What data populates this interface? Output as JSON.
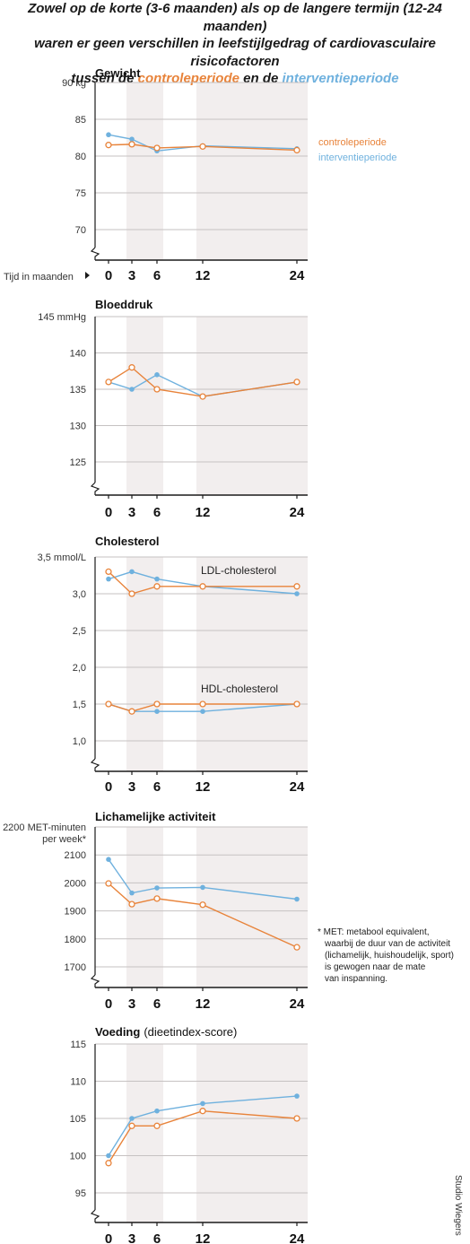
{
  "headline": {
    "line1": "Zowel op de korte (3-6 maanden) als op de langere termijn (12-24 maanden)",
    "line2": "waren er geen verschillen in leefstijlgedrag of cardiovasculaire risicofactoren",
    "line3_prefix": "tussen de",
    "control_label": "controleperiode",
    "connector": "en de",
    "intervention_label": "interventieperiode"
  },
  "colors": {
    "control": "#e8833a",
    "intervention": "#6fb1de",
    "shade": "#f2eeee",
    "grid": "#c6c2c2"
  },
  "x_axis_label": "Tijd in maanden",
  "credit": "Studio Wiegers",
  "chart_data": [
    {
      "type": "line",
      "title": "Gewicht",
      "x": [
        0,
        3,
        6,
        12,
        24
      ],
      "ylim": [
        65,
        90
      ],
      "yticks": [
        90,
        85,
        80,
        75,
        70
      ],
      "ytick_labels": [
        "90 kg",
        "85",
        "80",
        "75",
        "70"
      ],
      "legend": {
        "placement": "right",
        "entries": [
          "controleperiode",
          "interventieperiode"
        ]
      },
      "series": [
        {
          "name": "controleperiode",
          "key": "control",
          "values": [
            81.5,
            81.6,
            81.1,
            81.3,
            80.8
          ]
        },
        {
          "name": "interventieperiode",
          "key": "intervention",
          "values": [
            82.9,
            82.3,
            80.7,
            81.4,
            81.0
          ]
        }
      ]
    },
    {
      "type": "line",
      "title": "Bloeddruk",
      "x": [
        0,
        3,
        6,
        12,
        24
      ],
      "ylim": [
        120,
        145
      ],
      "yticks": [
        145,
        140,
        135,
        130,
        125
      ],
      "ytick_labels": [
        "145 mmHg",
        "140",
        "135",
        "130",
        "125"
      ],
      "series": [
        {
          "key": "control",
          "values": [
            136,
            138,
            135,
            134,
            136
          ]
        },
        {
          "key": "intervention",
          "values": [
            136,
            135,
            137,
            134,
            136
          ]
        }
      ]
    },
    {
      "type": "line",
      "title": "Cholesterol",
      "x": [
        0,
        3,
        6,
        12,
        24
      ],
      "ylim": [
        0.75,
        3.5
      ],
      "yticks": [
        3.5,
        3.0,
        2.5,
        2.0,
        1.5,
        1.0
      ],
      "ytick_labels": [
        "3,5 mmol/L",
        "3,0",
        "2,5",
        "2,0",
        "1,5",
        "1,0"
      ],
      "annotations": [
        "LDL-cholesterol",
        "HDL-cholesterol"
      ],
      "series": [
        {
          "key": "control",
          "values": [
            3.3,
            3.0,
            3.1,
            3.1,
            3.1
          ]
        },
        {
          "key": "intervention",
          "values": [
            3.2,
            3.3,
            3.2,
            3.1,
            3.0
          ]
        },
        {
          "key": "control",
          "values": [
            1.5,
            1.4,
            1.5,
            1.5,
            1.5
          ]
        },
        {
          "key": "intervention",
          "values": [
            1.5,
            1.4,
            1.4,
            1.4,
            1.5
          ]
        }
      ]
    },
    {
      "type": "line",
      "title": "Lichamelijke activiteit",
      "x": [
        0,
        3,
        6,
        12,
        24
      ],
      "ylim": [
        1630,
        2200
      ],
      "yticks": [
        2200,
        2100,
        2000,
        1900,
        1800,
        1700
      ],
      "ytick_labels": [
        "2200 MET-minuten",
        "2100",
        "2000",
        "1900",
        "1800",
        "1700"
      ],
      "ytick_extra": "per week*",
      "note": [
        "* MET: metabool equivalent,",
        "waarbij de duur van de activiteit",
        "(lichamelijk, huishoudelijk, sport)",
        "is gewogen naar de mate",
        "van inspanning."
      ],
      "series": [
        {
          "key": "control",
          "values": [
            1998,
            1924,
            1944,
            1922,
            1770
          ]
        },
        {
          "key": "intervention",
          "values": [
            2084,
            1964,
            1982,
            1984,
            1942
          ]
        }
      ]
    },
    {
      "type": "line",
      "title": "Voeding",
      "subtitle": "(dieetindex-score)",
      "x": [
        0,
        3,
        6,
        12,
        24
      ],
      "ylim": [
        92,
        115
      ],
      "yticks": [
        115,
        110,
        105,
        100,
        95
      ],
      "ytick_labels": [
        "115",
        "110",
        "105",
        "100",
        "95"
      ],
      "series": [
        {
          "key": "control",
          "values": [
            99,
            104,
            104,
            106,
            105
          ]
        },
        {
          "key": "intervention",
          "values": [
            100,
            105,
            106,
            107,
            108
          ]
        }
      ]
    }
  ]
}
